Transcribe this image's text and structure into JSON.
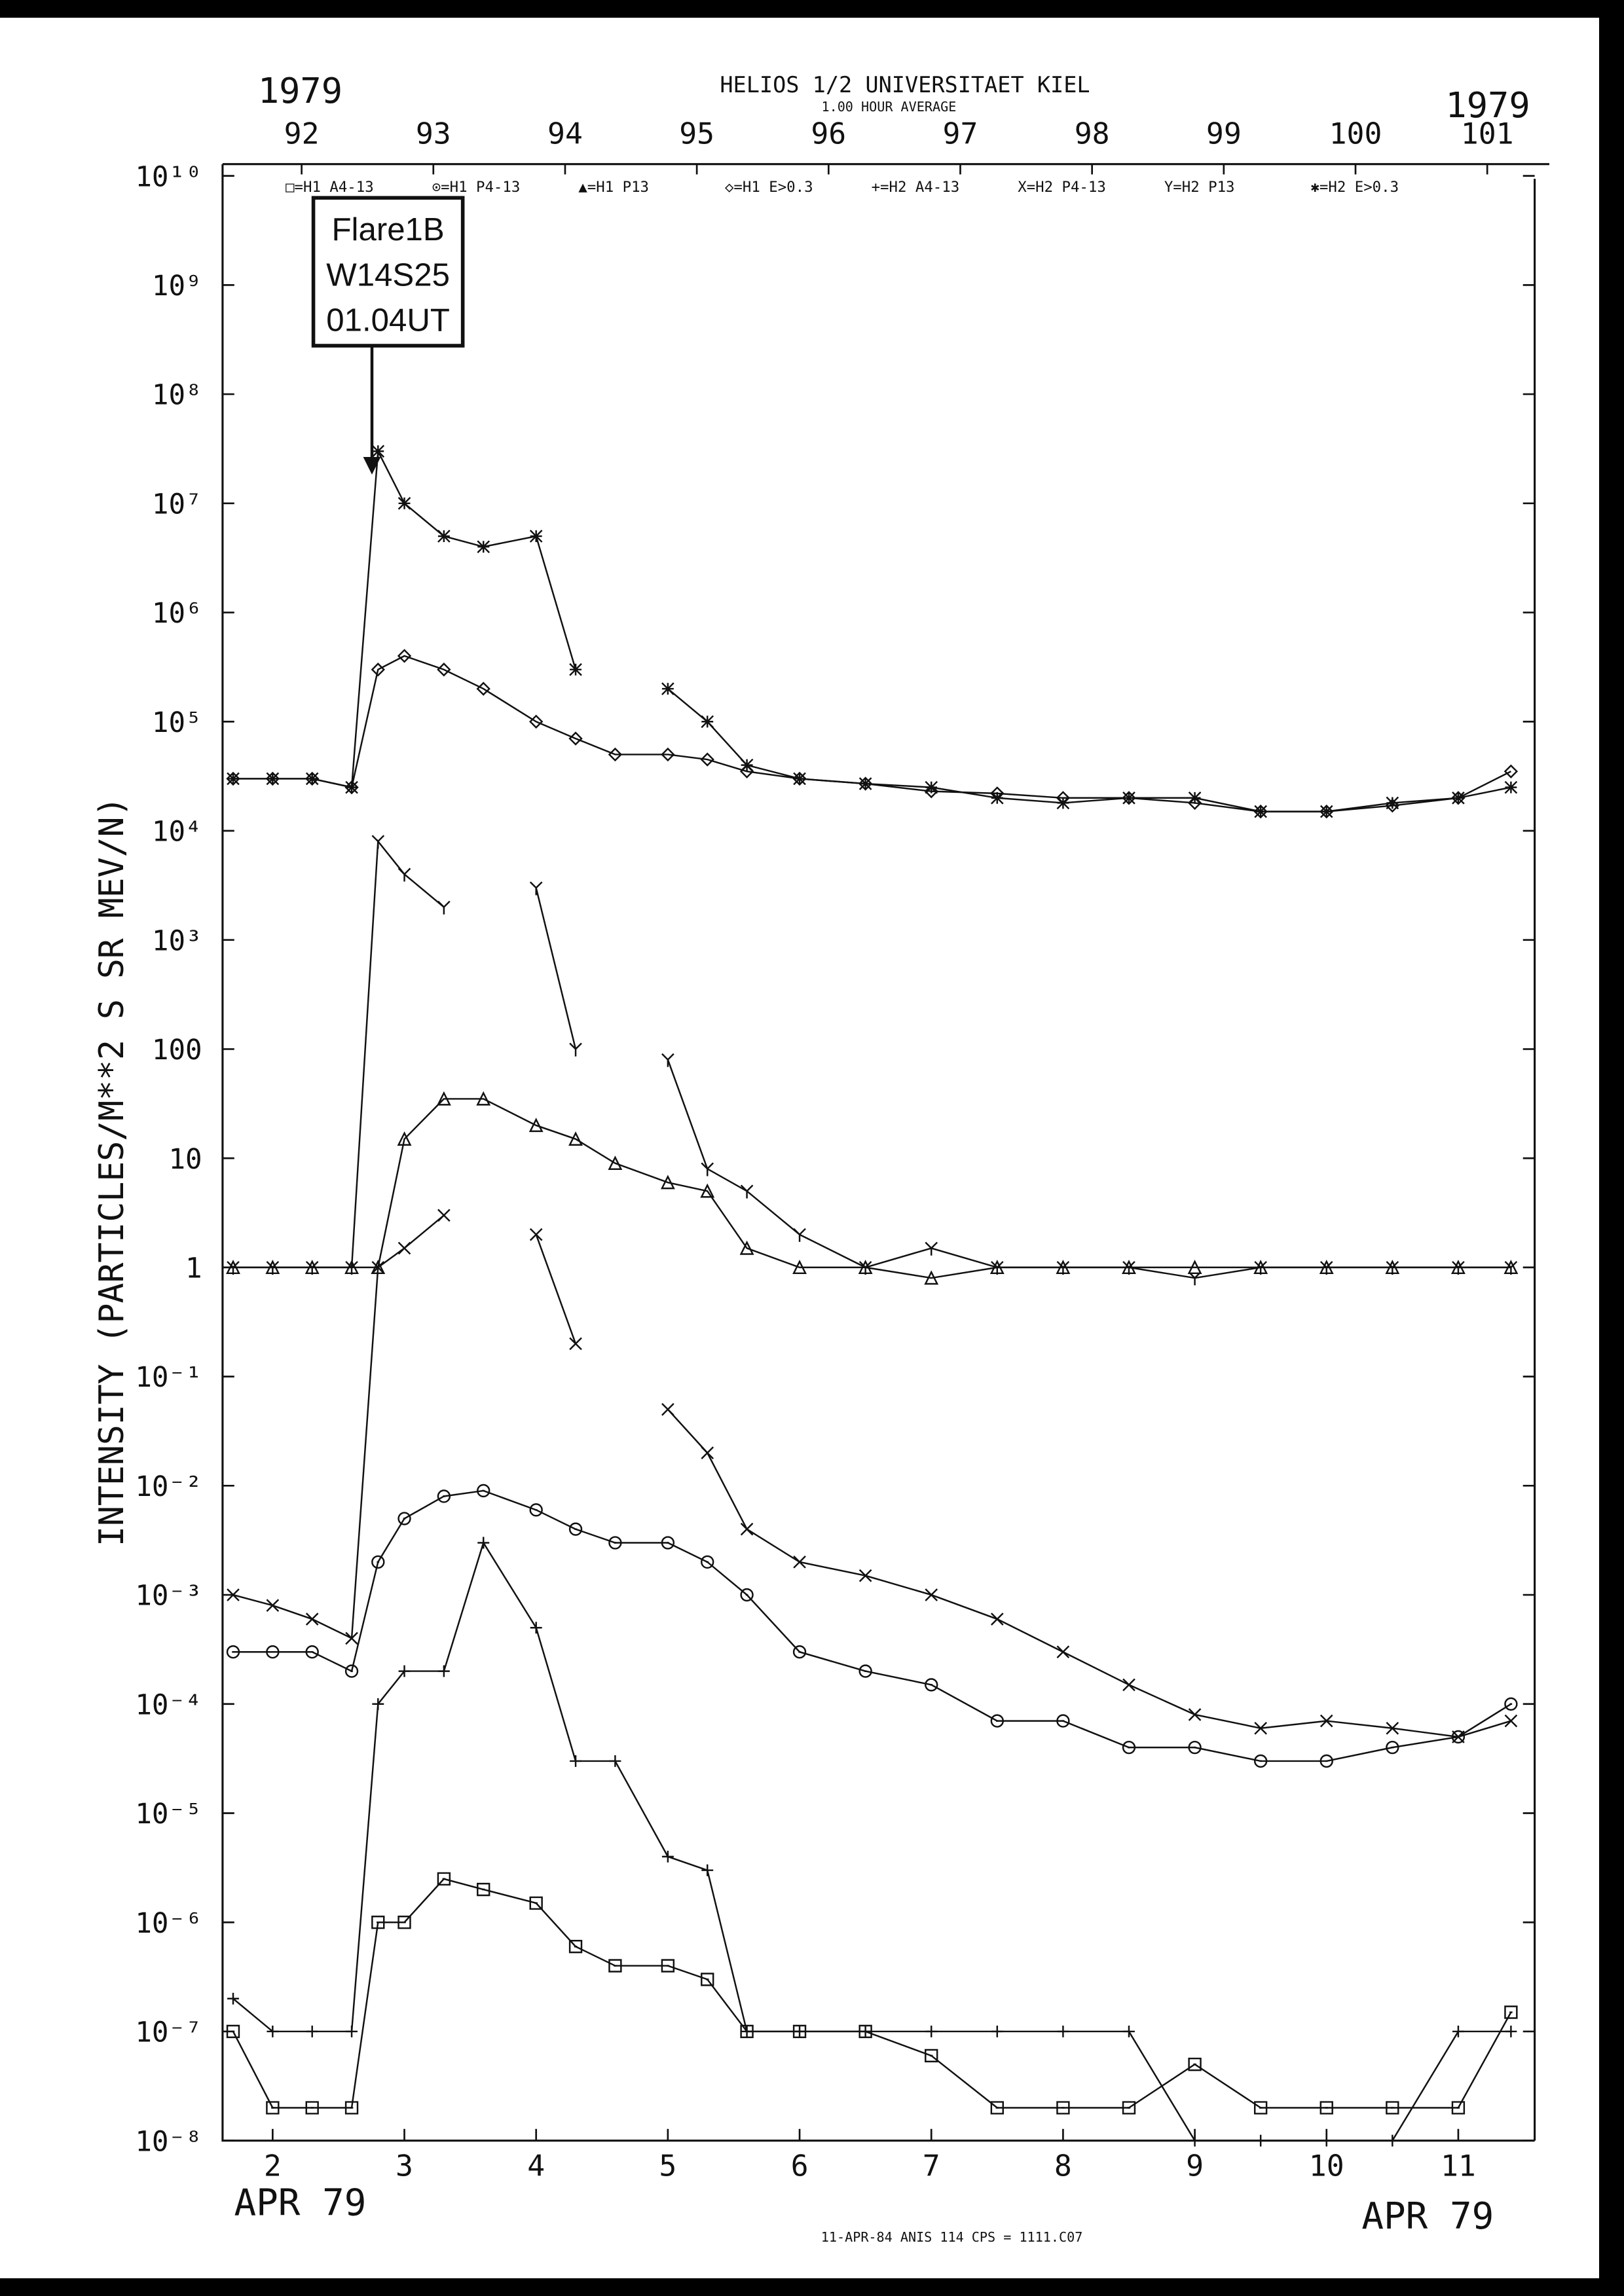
{
  "chart_data": {
    "type": "line",
    "title": "HELIOS 1/2 UNIVERSITAET KIEL",
    "subtitle": "1.00 HOUR AVERAGE",
    "year_left": "1979",
    "year_right": "1979",
    "y_label": "INTENSITY (PARTICLES/M**2 S SR MEV/N)",
    "x_label_left": "APR 79",
    "x_label_right": "APR 79",
    "footer": "11-APR-84 ANIS 114 CPS = 1111.C07",
    "annotation": [
      "Flare1B",
      "W14S25",
      "01.04UT"
    ],
    "log_y": true,
    "ylim": [
      1e-08,
      10000000000.0
    ],
    "yticks": [
      {
        "value": 10000000000.0,
        "label": "10¹⁰"
      },
      {
        "value": 1000000000.0,
        "label": "10⁹"
      },
      {
        "value": 100000000.0,
        "label": "10⁸"
      },
      {
        "value": 10000000.0,
        "label": "10⁷"
      },
      {
        "value": 1000000.0,
        "label": "10⁶"
      },
      {
        "value": 100000.0,
        "label": "10⁵"
      },
      {
        "value": 10000.0,
        "label": "10⁴"
      },
      {
        "value": 1000.0,
        "label": "10³"
      },
      100,
      10,
      1,
      {
        "value": 0.1,
        "label": "10⁻¹"
      },
      {
        "value": 0.01,
        "label": "10⁻²"
      },
      {
        "value": 0.001,
        "label": "10⁻³"
      },
      {
        "value": 0.0001,
        "label": "10⁻⁴"
      },
      {
        "value": 1e-05,
        "label": "10⁻⁵"
      },
      {
        "value": 1e-06,
        "label": "10⁻⁶"
      },
      {
        "value": 1e-07,
        "label": "10⁻⁷"
      },
      {
        "value": 1e-08,
        "label": "10⁻⁸"
      }
    ],
    "xlim": [
      1.62,
      11.58
    ],
    "xticks": [
      2,
      3,
      4,
      5,
      6,
      7,
      8,
      9,
      10,
      11
    ],
    "x2lim": [
      91.4,
      101.36
    ],
    "x2ticks": [
      92,
      93,
      94,
      95,
      96,
      97,
      98,
      99,
      100,
      101
    ],
    "x": [
      1.7,
      2.0,
      2.3,
      2.6,
      2.8,
      3.0,
      3.3,
      3.6,
      4.0,
      4.3,
      4.6,
      5.0,
      5.3,
      5.6,
      6.0,
      6.5,
      7.0,
      7.5,
      8.0,
      8.5,
      9.0,
      9.5,
      10.0,
      10.5,
      11.0,
      11.4
    ],
    "series": [
      {
        "name": "□=H1 A4-13",
        "marker": "square",
        "color": "#111111",
        "values": [
          1e-07,
          2e-08,
          2e-08,
          2e-08,
          1e-06,
          1e-06,
          2.5e-06,
          2e-06,
          1.5e-06,
          6e-07,
          4e-07,
          4e-07,
          3e-07,
          1e-07,
          1e-07,
          1e-07,
          6e-08,
          2e-08,
          2e-08,
          2e-08,
          5e-08,
          2e-08,
          2e-08,
          2e-08,
          2e-08,
          1.5e-07
        ]
      },
      {
        "name": "⊙=H1 P4-13",
        "marker": "circle",
        "color": "#111111",
        "values": [
          0.0003,
          0.0003,
          0.0003,
          0.0002,
          0.002,
          0.005,
          0.008,
          0.009,
          0.006,
          0.004,
          0.003,
          0.003,
          0.002,
          0.001,
          0.0003,
          0.0002,
          0.00015,
          7e-05,
          7e-05,
          4e-05,
          4e-05,
          3e-05,
          3e-05,
          4e-05,
          5e-05,
          0.0001
        ]
      },
      {
        "name": "▲=H1 P13",
        "marker": "triangle",
        "color": "#111111",
        "values": [
          1,
          1,
          1,
          1,
          1,
          15,
          35,
          35,
          20,
          15,
          9,
          6,
          5,
          1.5,
          1,
          1,
          0.8,
          1,
          1,
          1,
          1,
          1,
          1,
          1,
          1,
          1
        ]
      },
      {
        "name": "◇=H1 E>0.3",
        "marker": "diamond",
        "color": "#111111",
        "values": [
          30000.0,
          30000.0,
          30000.0,
          25000.0,
          300000.0,
          400000.0,
          300000.0,
          200000.0,
          100000.0,
          70000.0,
          50000.0,
          50000.0,
          45000.0,
          35000.0,
          30000.0,
          27000.0,
          23000.0,
          22000.0,
          20000.0,
          20000.0,
          18000.0,
          15000.0,
          15000.0,
          17000.0,
          20000.0,
          35000.0
        ]
      },
      {
        "name": "+=H2 A4-13",
        "marker": "plus",
        "color": "#111111",
        "values": [
          2e-07,
          1e-07,
          1e-07,
          1e-07,
          0.0001,
          0.0002,
          0.0002,
          0.003,
          0.0005,
          3e-05,
          3e-05,
          4e-06,
          3e-06,
          1e-07,
          1e-07,
          1e-07,
          1e-07,
          1e-07,
          1e-07,
          1e-07,
          1e-08,
          1e-08,
          1e-08,
          1e-08,
          1e-07,
          1e-07
        ]
      },
      {
        "name": "X=H2 P4-13",
        "marker": "cross",
        "color": "#111111",
        "values": [
          0.001,
          0.0008,
          0.0006,
          0.0004,
          1,
          1.5,
          3,
          null,
          2,
          0.2,
          null,
          0.05,
          0.02,
          0.004,
          0.002,
          0.0015,
          0.001,
          0.0006,
          0.0003,
          0.00015,
          8e-05,
          6e-05,
          7e-05,
          6e-05,
          5e-05,
          7e-05
        ]
      },
      {
        "name": "Y=H2 P13",
        "marker": "y",
        "color": "#111111",
        "values": [
          1,
          1,
          1,
          1,
          8000,
          4000,
          2000,
          null,
          3000,
          100,
          null,
          80,
          8,
          5,
          2,
          1,
          1.5,
          1,
          1,
          1,
          0.8,
          1,
          1,
          1,
          1,
          1
        ]
      },
      {
        "name": "✱=H2 E>0.3",
        "marker": "star",
        "color": "#111111",
        "values": [
          30000.0,
          30000.0,
          30000.0,
          25000.0,
          30000000.0,
          10000000.0,
          5000000.0,
          4000000.0,
          5000000.0,
          300000.0,
          null,
          200000.0,
          100000.0,
          40000.0,
          30000.0,
          27000.0,
          25000.0,
          20000.0,
          18000.0,
          20000.0,
          20000.0,
          15000.0,
          15000.0,
          18000.0,
          20000.0,
          25000.0
        ]
      }
    ]
  }
}
